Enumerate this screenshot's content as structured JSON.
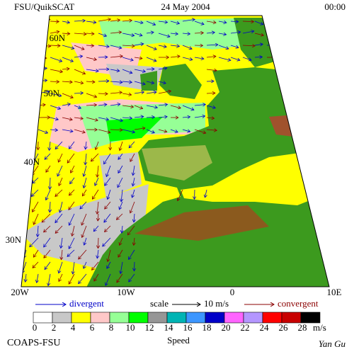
{
  "header": {
    "title": "FSU/QuikSCAT",
    "date": "24 May 2004",
    "time": "00:00"
  },
  "map": {
    "lat_labels": [
      "60N",
      "50N",
      "40N",
      "30N"
    ],
    "lon_labels": [
      "20W",
      "10W",
      "0",
      "10E"
    ]
  },
  "legend": {
    "divergent": "divergent",
    "scale": "scale",
    "scale_value": "10 m/s",
    "convergent": "convergent"
  },
  "colorbar": {
    "title": "Speed",
    "unit": "m/s",
    "ticks": [
      0,
      2,
      4,
      6,
      8,
      10,
      12,
      14,
      16,
      18,
      20,
      22,
      24,
      26,
      28
    ],
    "colors": [
      "#ffffff",
      "#c8c8c8",
      "#ffff00",
      "#ffc8c8",
      "#96ff96",
      "#00ff00",
      "#969696",
      "#00b4b4",
      "#3c96ff",
      "#0000c8",
      "#ff64ff",
      "#b496ff",
      "#ff0000",
      "#c80000",
      "#000000"
    ]
  },
  "footer": {
    "left": "COAPS-FSU",
    "right": "Yan Gu"
  }
}
